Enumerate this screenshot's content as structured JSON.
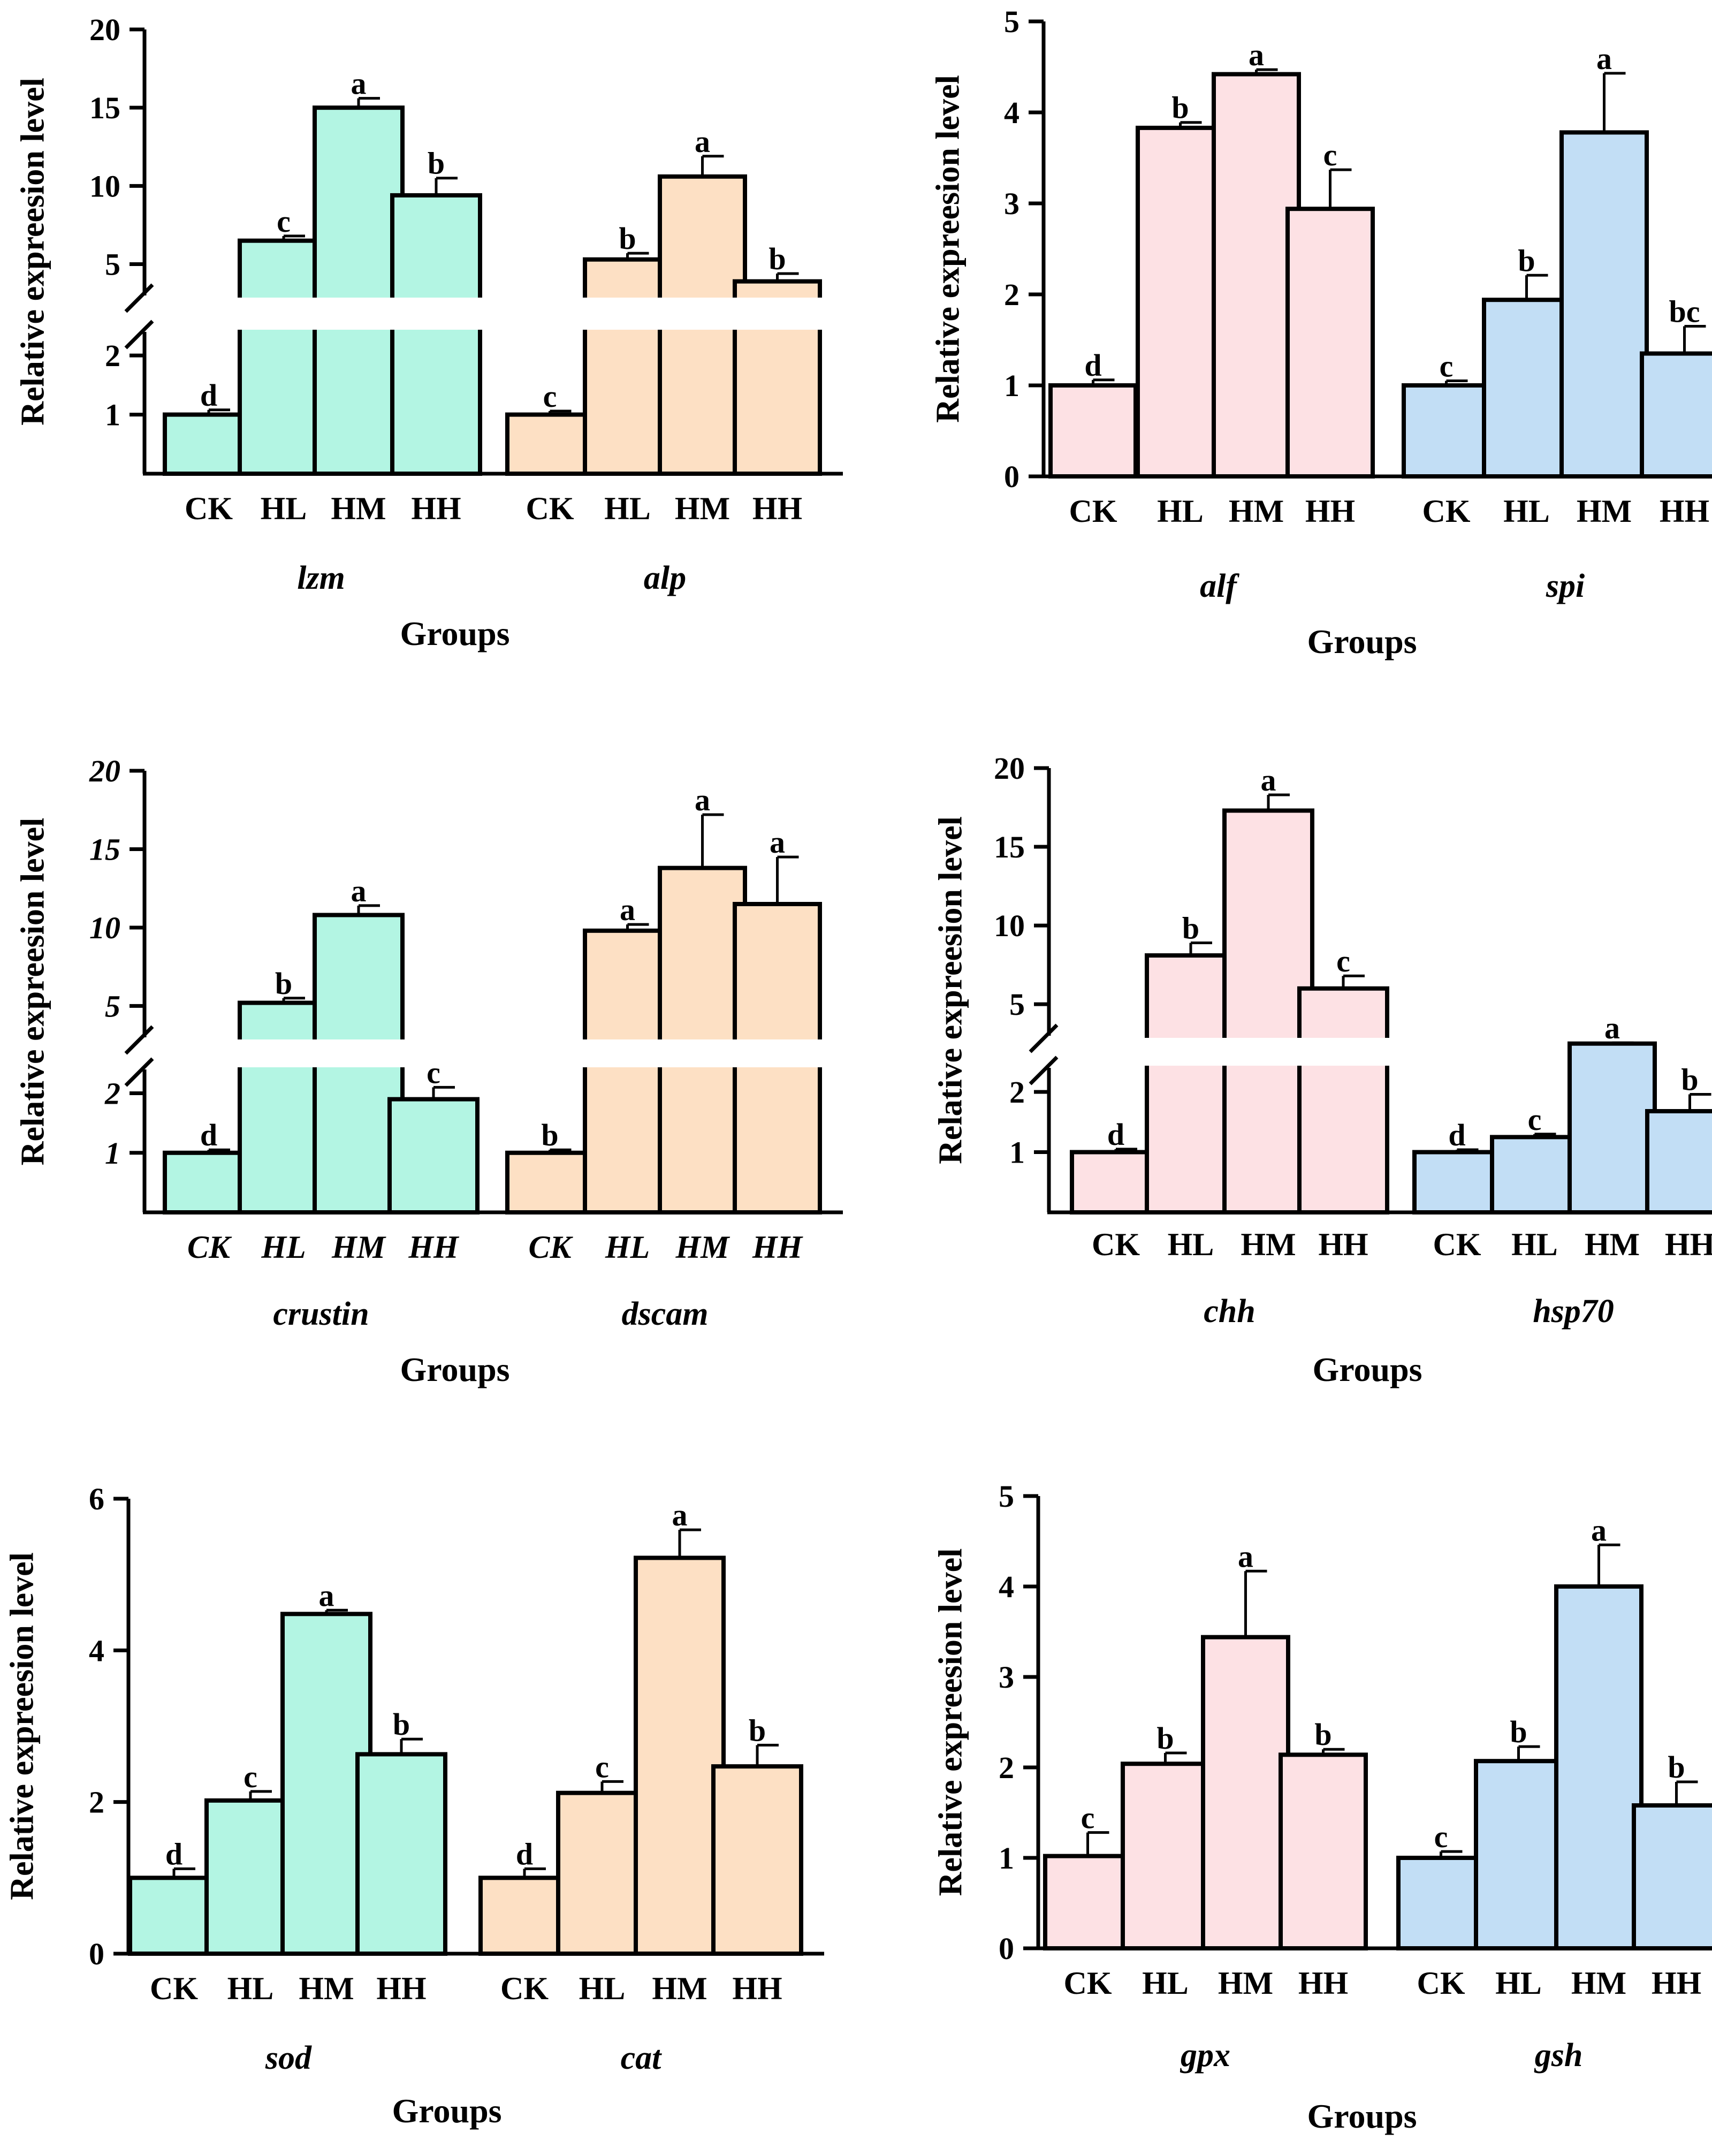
{
  "figure": {
    "colors": {
      "green": "#b3f5e3",
      "orange": "#fde0c4",
      "pink": "#fde1e4",
      "blue": "#c2def5",
      "ink": "#000000"
    }
  },
  "chart_data": [
    {
      "type": "bar",
      "ylabel": "Relative expreesion level",
      "xlabel": "Groups",
      "italic_ticks": false,
      "ylim": [
        0,
        20
      ],
      "axis_break": {
        "low_max": 2.4,
        "high_min": 3.0
      },
      "yticks": [
        {
          "value": 1,
          "label": "1"
        },
        {
          "value": 2,
          "label": "2"
        },
        {
          "value": 5,
          "label": "5"
        },
        {
          "value": 10,
          "label": "10"
        },
        {
          "value": 15,
          "label": "15"
        },
        {
          "value": 20,
          "label": "20"
        }
      ],
      "groups": [
        {
          "gene": "lzm",
          "color": "green",
          "categories": [
            "CK",
            "HL",
            "HM",
            "HH"
          ],
          "values": [
            1.0,
            6.5,
            15.0,
            9.4
          ],
          "errors": [
            0.08,
            0.3,
            0.6,
            1.1
          ],
          "letters": [
            "d",
            "c",
            "a",
            "b"
          ]
        },
        {
          "gene": "alp",
          "color": "orange",
          "categories": [
            "CK",
            "HL",
            "HM",
            "HH"
          ],
          "values": [
            1.0,
            5.3,
            10.6,
            3.9
          ],
          "errors": [
            0.06,
            0.4,
            1.3,
            0.5
          ],
          "letters": [
            "c",
            "b",
            "a",
            "b"
          ]
        }
      ]
    },
    {
      "type": "bar",
      "ylabel": "Relative expreesion level",
      "xlabel": "Groups",
      "italic_ticks": false,
      "ylim": [
        0,
        5
      ],
      "yticks": [
        {
          "value": 0,
          "label": "0"
        },
        {
          "value": 1,
          "label": "1"
        },
        {
          "value": 2,
          "label": "2"
        },
        {
          "value": 3,
          "label": "3"
        },
        {
          "value": 4,
          "label": "4"
        },
        {
          "value": 5,
          "label": "5"
        }
      ],
      "groups": [
        {
          "gene": "alf",
          "color": "pink",
          "categories": [
            "CK",
            "HL",
            "HM",
            "HH"
          ],
          "values": [
            1.0,
            3.83,
            4.42,
            2.94
          ],
          "errors": [
            0.06,
            0.06,
            0.05,
            0.43
          ],
          "letters": [
            "d",
            "b",
            "a",
            "c"
          ]
        },
        {
          "gene": "spi",
          "color": "blue",
          "categories": [
            "CK",
            "HL",
            "HM",
            "HH"
          ],
          "values": [
            1.0,
            1.94,
            3.78,
            1.35
          ],
          "errors": [
            0.05,
            0.27,
            0.65,
            0.3
          ],
          "letters": [
            "c",
            "b",
            "a",
            "bc"
          ]
        }
      ]
    },
    {
      "type": "bar",
      "ylabel": "Relative expreesion level",
      "xlabel": "Groups",
      "italic_ticks": true,
      "ylim": [
        0,
        20
      ],
      "axis_break": {
        "low_max": 2.4,
        "high_min": 3.0
      },
      "yticks": [
        {
          "value": 1,
          "label": "1"
        },
        {
          "value": 2,
          "label": "2"
        },
        {
          "value": 5,
          "label": "5"
        },
        {
          "value": 10,
          "label": "10"
        },
        {
          "value": 15,
          "label": "15"
        },
        {
          "value": 20,
          "label": "20"
        }
      ],
      "groups": [
        {
          "gene": "crustin",
          "color": "green",
          "categories": [
            "CK",
            "HL",
            "HM",
            "HH"
          ],
          "values": [
            1.0,
            5.2,
            10.8,
            1.9
          ],
          "errors": [
            0.05,
            0.3,
            0.6,
            0.2
          ],
          "letters": [
            "d",
            "b",
            "a",
            "c"
          ]
        },
        {
          "gene": "dscam",
          "color": "orange",
          "categories": [
            "CK",
            "HL",
            "HM",
            "HH"
          ],
          "values": [
            1.0,
            9.8,
            13.8,
            11.5
          ],
          "errors": [
            0.05,
            0.4,
            3.4,
            3.0
          ],
          "letters": [
            "b",
            "a",
            "a",
            "a"
          ]
        }
      ]
    },
    {
      "type": "bar",
      "ylabel": "Relative expreesion level",
      "xlabel": "Groups",
      "italic_ticks": false,
      "ylim": [
        0,
        20
      ],
      "axis_break": {
        "low_max": 2.4,
        "high_min": 3.0
      },
      "yticks": [
        {
          "value": 1,
          "label": "1"
        },
        {
          "value": 2,
          "label": "2"
        },
        {
          "value": 5,
          "label": "5"
        },
        {
          "value": 10,
          "label": "10"
        },
        {
          "value": 15,
          "label": "15"
        },
        {
          "value": 20,
          "label": "20"
        }
      ],
      "groups": [
        {
          "gene": "chh",
          "color": "pink",
          "categories": [
            "CK",
            "HL",
            "HM",
            "HH"
          ],
          "values": [
            1.0,
            8.1,
            17.3,
            6.0
          ],
          "errors": [
            0.05,
            0.8,
            1.0,
            0.8
          ],
          "letters": [
            "d",
            "b",
            "a",
            "c"
          ]
        },
        {
          "gene": "hsp70",
          "color": "blue",
          "categories": [
            "CK",
            "HL",
            "HM",
            "HH"
          ],
          "values": [
            1.0,
            1.25,
            2.5,
            1.68
          ],
          "errors": [
            0.04,
            0.05,
            0.05,
            0.28
          ],
          "letters": [
            "d",
            "c",
            "a",
            "b"
          ]
        }
      ]
    },
    {
      "type": "bar",
      "ylabel": "Relative expreesion level",
      "xlabel": "Groups",
      "italic_ticks": false,
      "ylim": [
        0,
        6
      ],
      "yticks": [
        {
          "value": 0,
          "label": "0"
        },
        {
          "value": 2,
          "label": "2"
        },
        {
          "value": 4,
          "label": "4"
        },
        {
          "value": 6,
          "label": "6"
        }
      ],
      "groups": [
        {
          "gene": "sod",
          "color": "green",
          "categories": [
            "CK",
            "HL",
            "HM",
            "HH"
          ],
          "values": [
            1.0,
            2.02,
            4.48,
            2.63
          ],
          "errors": [
            0.12,
            0.12,
            0.05,
            0.2
          ],
          "letters": [
            "d",
            "c",
            "a",
            "b"
          ]
        },
        {
          "gene": "cat",
          "color": "orange",
          "categories": [
            "CK",
            "HL",
            "HM",
            "HH"
          ],
          "values": [
            1.0,
            2.12,
            5.22,
            2.47
          ],
          "errors": [
            0.12,
            0.15,
            0.37,
            0.28
          ],
          "letters": [
            "d",
            "c",
            "a",
            "b"
          ]
        }
      ]
    },
    {
      "type": "bar",
      "ylabel": "Relative expreesion level",
      "xlabel": "Groups",
      "italic_ticks": false,
      "ylim": [
        0,
        5
      ],
      "yticks": [
        {
          "value": 0,
          "label": "0"
        },
        {
          "value": 1,
          "label": "1"
        },
        {
          "value": 2,
          "label": "2"
        },
        {
          "value": 3,
          "label": "3"
        },
        {
          "value": 4,
          "label": "4"
        },
        {
          "value": 5,
          "label": "5"
        }
      ],
      "groups": [
        {
          "gene": "gpx",
          "color": "pink",
          "categories": [
            "CK",
            "HL",
            "HM",
            "HH"
          ],
          "values": [
            1.02,
            2.04,
            3.44,
            2.14
          ],
          "errors": [
            0.26,
            0.12,
            0.73,
            0.06
          ],
          "letters": [
            "c",
            "b",
            "a",
            "b"
          ]
        },
        {
          "gene": "gsh",
          "color": "blue",
          "categories": [
            "CK",
            "HL",
            "HM",
            "HH"
          ],
          "values": [
            1.0,
            2.07,
            4.0,
            1.58
          ],
          "errors": [
            0.07,
            0.16,
            0.46,
            0.26
          ],
          "letters": [
            "c",
            "b",
            "a",
            "b"
          ]
        }
      ]
    }
  ]
}
